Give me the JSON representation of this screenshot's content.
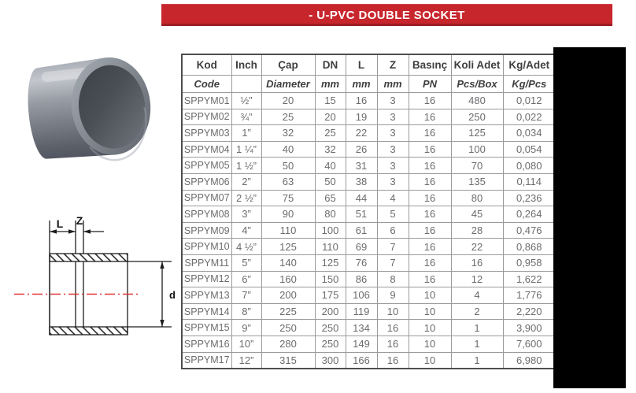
{
  "header": {
    "title": "- U-PVC DOUBLE SOCKET",
    "banner_color": "#c8262d"
  },
  "diagram": {
    "label_l": "L",
    "label_z": "Z",
    "label_d": "d",
    "centerline_color": "#e03438"
  },
  "table": {
    "columns": [
      {
        "top": "Kod",
        "bottom": "Code"
      },
      {
        "top": "Inch",
        "bottom": ""
      },
      {
        "top": "Çap",
        "bottom": "Diameter"
      },
      {
        "top": "DN",
        "bottom": "mm"
      },
      {
        "top": "L",
        "bottom": "mm"
      },
      {
        "top": "Z",
        "bottom": "mm"
      },
      {
        "top": "Basınç",
        "bottom": "PN"
      },
      {
        "top": "Koli Adet",
        "bottom": "Pcs/Box"
      },
      {
        "top": "Kg/Adet",
        "bottom": "Kg/Pcs"
      }
    ],
    "rows": [
      [
        "SPPYM01",
        "½”",
        "20",
        "15",
        "16",
        "3",
        "16",
        "480",
        "0,012"
      ],
      [
        "SPPYM02",
        "¾”",
        "25",
        "20",
        "19",
        "3",
        "16",
        "250",
        "0,022"
      ],
      [
        "SPPYM03",
        "1”",
        "32",
        "25",
        "22",
        "3",
        "16",
        "125",
        "0,034"
      ],
      [
        "SPPYM04",
        "1 ¼”",
        "40",
        "32",
        "26",
        "3",
        "16",
        "100",
        "0,054"
      ],
      [
        "SPPYM05",
        "1 ½”",
        "50",
        "40",
        "31",
        "3",
        "16",
        "70",
        "0,080"
      ],
      [
        "SPPYM06",
        "2”",
        "63",
        "50",
        "38",
        "3",
        "16",
        "135",
        "0,114"
      ],
      [
        "SPPYM07",
        "2 ½”",
        "75",
        "65",
        "44",
        "4",
        "16",
        "80",
        "0,236"
      ],
      [
        "SPPYM08",
        "3”",
        "90",
        "80",
        "51",
        "5",
        "16",
        "45",
        "0,264"
      ],
      [
        "SPPYM09",
        "4”",
        "110",
        "100",
        "61",
        "6",
        "16",
        "28",
        "0,476"
      ],
      [
        "SPPYM10",
        "4 ½”",
        "125",
        "110",
        "69",
        "7",
        "16",
        "22",
        "0,868"
      ],
      [
        "SPPYM11",
        "5”",
        "140",
        "125",
        "76",
        "7",
        "16",
        "16",
        "0,958"
      ],
      [
        "SPPYM12",
        "6”",
        "160",
        "150",
        "86",
        "8",
        "16",
        "12",
        "1,622"
      ],
      [
        "SPPYM13",
        "7”",
        "200",
        "175",
        "106",
        "9",
        "10",
        "4",
        "1,776"
      ],
      [
        "SPPYM14",
        "8”",
        "225",
        "200",
        "119",
        "10",
        "10",
        "2",
        "2,220"
      ],
      [
        "SPPYM15",
        "9”",
        "250",
        "250",
        "134",
        "16",
        "10",
        "1",
        "3,900"
      ],
      [
        "SPPYM16",
        "10”",
        "280",
        "250",
        "149",
        "16",
        "10",
        "1",
        "7,600"
      ],
      [
        "SPPYM17",
        "12”",
        "315",
        "300",
        "166",
        "16",
        "10",
        "1",
        "6,980"
      ]
    ]
  }
}
